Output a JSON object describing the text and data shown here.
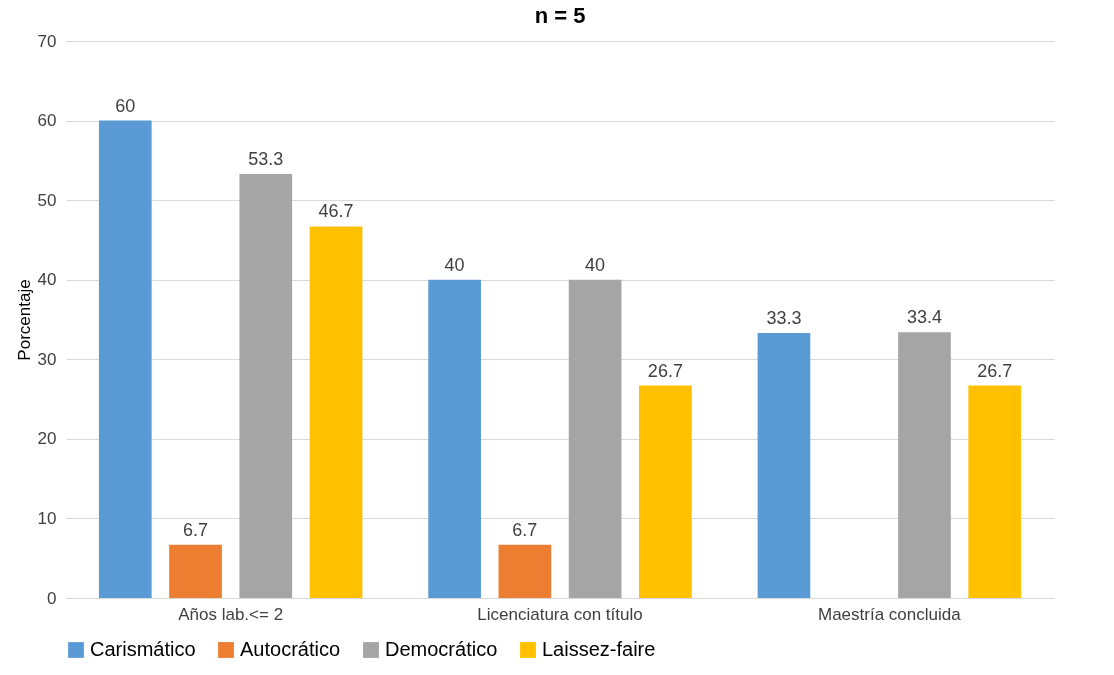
{
  "chart_data": {
    "type": "bar",
    "title": "n = 5",
    "ylabel": "Porcentaje",
    "categories": [
      "Años lab.<= 2",
      "Licenciatura con título",
      "Maestría concluida"
    ],
    "series": [
      {
        "name": "Carismático",
        "color": "#5b9bd5",
        "values": [
          60,
          40,
          33.3
        ]
      },
      {
        "name": "Autocrático",
        "color": "#ed7d31",
        "values": [
          6.7,
          6.7,
          null
        ]
      },
      {
        "name": "Democrático",
        "color": "#a5a5a5",
        "values": [
          53.3,
          40,
          33.4
        ]
      },
      {
        "name": "Laissez-faire",
        "color": "#ffc000",
        "values": [
          46.7,
          26.7,
          26.7
        ]
      }
    ],
    "ylim": [
      0,
      70
    ],
    "yticks": [
      0,
      10,
      20,
      30,
      40,
      50,
      60,
      70
    ],
    "grid": "y",
    "legend": "bottom",
    "data_labels": true
  }
}
